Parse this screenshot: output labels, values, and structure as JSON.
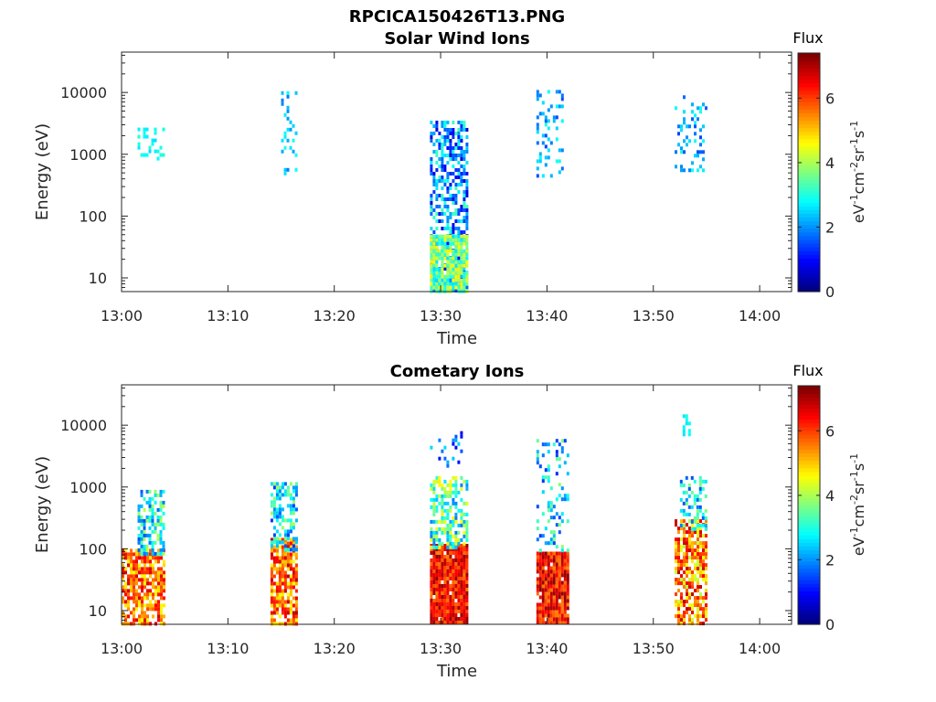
{
  "figure": {
    "filename": "RPCICA150426T13.PNG"
  },
  "chart_data": [
    {
      "type": "heatmap",
      "title": "Solar Wind Ions",
      "xlabel": "Time",
      "ylabel": "Energy (eV)",
      "x_ticks": [
        "13:00",
        "13:10",
        "13:20",
        "13:30",
        "13:40",
        "13:50",
        "14:00"
      ],
      "y_scale": "log",
      "y_ticks": [
        10,
        100,
        1000,
        10000
      ],
      "ylim": [
        6,
        45000
      ],
      "xlim": [
        "13:00",
        "14:03"
      ],
      "colorbar": {
        "title": "Flux",
        "label": "eV-1cm-2sr-1s-1",
        "range": [
          0,
          7.4
        ],
        "ticks": [
          0,
          2,
          4,
          6
        ],
        "colormap": "jet"
      },
      "clusters": [
        {
          "t_min": 1.5,
          "t_max": 4.0,
          "e_min": 900,
          "e_max": 2700,
          "flux_min": 2.5,
          "flux_max": 3.2,
          "density": 0.25
        },
        {
          "t_min": 15.0,
          "t_max": 16.5,
          "e_min": 450,
          "e_max": 12000,
          "flux_min": 1.8,
          "flux_max": 3.0,
          "density": 0.18
        },
        {
          "t_min": 29.0,
          "t_max": 32.5,
          "e_min": 6,
          "e_max": 3500,
          "flux_min": 0.6,
          "flux_max": 3.3,
          "density": 0.55
        },
        {
          "t_min": 29.0,
          "t_max": 32.5,
          "e_min": 6,
          "e_max": 50,
          "flux_min": 2.5,
          "flux_max": 4.8,
          "density": 0.95
        },
        {
          "t_min": 39.0,
          "t_max": 41.5,
          "e_min": 450,
          "e_max": 11000,
          "flux_min": 1.4,
          "flux_max": 3.0,
          "density": 0.22
        },
        {
          "t_min": 52.0,
          "t_max": 55.0,
          "e_min": 550,
          "e_max": 9000,
          "flux_min": 1.4,
          "flux_max": 3.0,
          "density": 0.22
        }
      ]
    },
    {
      "type": "heatmap",
      "title": "Cometary Ions",
      "xlabel": "Time",
      "ylabel": "Energy (eV)",
      "x_ticks": [
        "13:00",
        "13:10",
        "13:20",
        "13:30",
        "13:40",
        "13:50",
        "14:00"
      ],
      "y_scale": "log",
      "y_ticks": [
        10,
        100,
        1000,
        10000
      ],
      "ylim": [
        6,
        45000
      ],
      "xlim": [
        "13:00",
        "14:03"
      ],
      "colorbar": {
        "title": "Flux",
        "label": "eV-1cm-2sr-1s-1",
        "range": [
          0,
          7.4
        ],
        "ticks": [
          0,
          2,
          4,
          6
        ],
        "colormap": "jet"
      },
      "clusters": [
        {
          "t_min": 0.0,
          "t_max": 4.0,
          "e_min": 6,
          "e_max": 100,
          "flux_min": 4.5,
          "flux_max": 6.8,
          "density": 0.75
        },
        {
          "t_min": 1.5,
          "t_max": 4.0,
          "e_min": 80,
          "e_max": 900,
          "flux_min": 1.5,
          "flux_max": 4.2,
          "density": 0.55
        },
        {
          "t_min": 14.0,
          "t_max": 16.5,
          "e_min": 6,
          "e_max": 150,
          "flux_min": 4.5,
          "flux_max": 7.0,
          "density": 0.8
        },
        {
          "t_min": 14.0,
          "t_max": 16.5,
          "e_min": 100,
          "e_max": 1200,
          "flux_min": 1.2,
          "flux_max": 4.0,
          "density": 0.5
        },
        {
          "t_min": 29.0,
          "t_max": 32.5,
          "e_min": 6,
          "e_max": 120,
          "flux_min": 5.5,
          "flux_max": 7.3,
          "density": 0.95
        },
        {
          "t_min": 29.0,
          "t_max": 32.5,
          "e_min": 100,
          "e_max": 1500,
          "flux_min": 1.8,
          "flux_max": 4.8,
          "density": 0.6
        },
        {
          "t_min": 29.0,
          "t_max": 32.0,
          "e_min": 2000,
          "e_max": 8000,
          "flux_min": 0.6,
          "flux_max": 2.8,
          "density": 0.15
        },
        {
          "t_min": 39.0,
          "t_max": 42.0,
          "e_min": 6,
          "e_max": 90,
          "flux_min": 5.5,
          "flux_max": 7.3,
          "density": 0.95
        },
        {
          "t_min": 39.0,
          "t_max": 42.0,
          "e_min": 90,
          "e_max": 6000,
          "flux_min": 1.2,
          "flux_max": 3.8,
          "density": 0.22
        },
        {
          "t_min": 52.0,
          "t_max": 55.0,
          "e_min": 6,
          "e_max": 300,
          "flux_min": 4.0,
          "flux_max": 7.0,
          "density": 0.7
        },
        {
          "t_min": 52.5,
          "t_max": 55.0,
          "e_min": 200,
          "e_max": 1500,
          "flux_min": 1.5,
          "flux_max": 3.8,
          "density": 0.45
        },
        {
          "t_min": 52.5,
          "t_max": 53.5,
          "e_min": 7000,
          "e_max": 15000,
          "flux_min": 2.5,
          "flux_max": 3.0,
          "density": 0.5
        }
      ]
    }
  ]
}
